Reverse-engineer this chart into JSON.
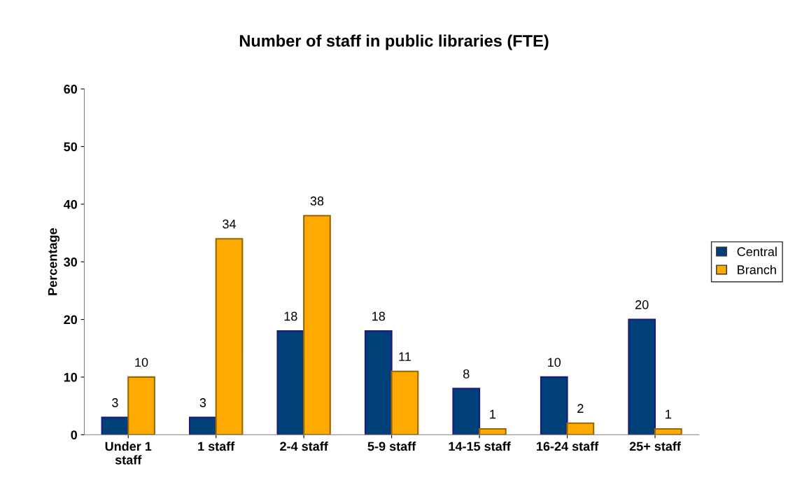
{
  "chart_data": {
    "type": "bar",
    "title": "Number of staff in public libraries (FTE)",
    "ylabel": "Percentage",
    "categories": [
      "Under 1\nstaff",
      "1 staff",
      "2-4 staff",
      "5-9 staff",
      "14-15 staff",
      "16-24 staff",
      "25+ staff"
    ],
    "series": [
      {
        "name": "Central",
        "color": "#004079",
        "values": [
          3,
          3,
          18,
          18,
          8,
          10,
          20
        ]
      },
      {
        "name": "Branch",
        "color": "#ffaa00",
        "values": [
          10,
          34,
          38,
          11,
          1,
          2,
          1
        ]
      }
    ],
    "ylim": [
      0,
      60
    ],
    "yticks": [
      0,
      10,
      20,
      30,
      40,
      50,
      60
    ],
    "grid": false,
    "legend": "right",
    "data_labels": true
  }
}
